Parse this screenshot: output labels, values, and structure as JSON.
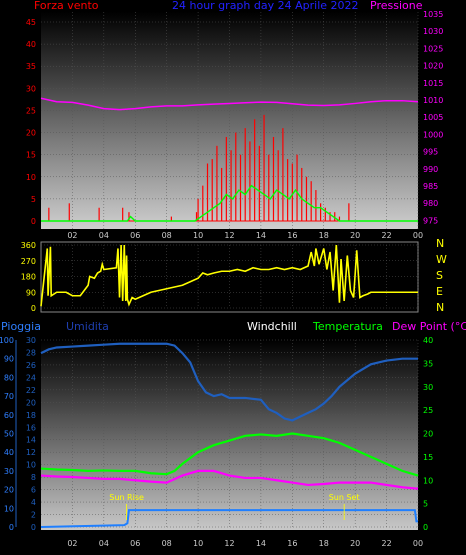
{
  "chart_data": [
    {
      "type": "line",
      "title": "24 hour graph day  24 Aprile 2022",
      "left_label": "Forza vento",
      "right_label": "Pressione",
      "x_ticks": [
        "02",
        "04",
        "06",
        "08",
        "10",
        "12",
        "14",
        "16",
        "18",
        "20",
        "22",
        "00"
      ],
      "y_left_ticks": [
        "0",
        "5",
        "10",
        "15",
        "20",
        "25",
        "30",
        "35",
        "40",
        "45"
      ],
      "y_left_range": [
        0,
        45
      ],
      "y_right_ticks": [
        "975",
        "980",
        "985",
        "990",
        "995",
        "1000",
        "1005",
        "1010",
        "1015",
        "1020",
        "1025",
        "1030",
        "1035"
      ],
      "y_right_range": [
        972.5,
        1035
      ],
      "series": [
        {
          "color": "#ff0000",
          "kind": "gust_bars",
          "x": [
            0.5,
            1.8,
            3.7,
            5.2,
            5.6,
            8.3,
            9.9,
            10.0,
            10.3,
            10.6,
            10.9,
            11.2,
            11.5,
            11.8,
            12.1,
            12.4,
            12.7,
            13.0,
            13.3,
            13.6,
            13.9,
            14.2,
            14.5,
            14.8,
            15.1,
            15.4,
            15.7,
            16.0,
            16.3,
            16.6,
            16.9,
            17.2,
            17.5,
            17.8,
            18.1,
            18.4,
            18.7,
            19.0,
            19.6
          ],
          "values": [
            3,
            4,
            3,
            3,
            2,
            1,
            2,
            5,
            8,
            13,
            14,
            17,
            12,
            19,
            16,
            20,
            15,
            21,
            18,
            23,
            17,
            24,
            15,
            19,
            16,
            21,
            14,
            13,
            15,
            12,
            10,
            9,
            7,
            4,
            3,
            2,
            2,
            1,
            4
          ]
        },
        {
          "color": "#00ff00",
          "kind": "wind",
          "x": [
            0,
            5.5,
            5.7,
            6,
            9,
            9.8,
            10.2,
            10.6,
            11,
            11.4,
            11.8,
            12.2,
            12.6,
            13,
            13.4,
            13.8,
            14.2,
            14.6,
            15,
            15.4,
            15.8,
            16.2,
            16.6,
            17,
            17.4,
            17.8,
            18.2,
            18.6,
            19,
            19.4,
            24
          ],
          "values": [
            0,
            0,
            1,
            0,
            0,
            0,
            1,
            2,
            3,
            4,
            6,
            5,
            7,
            6,
            8,
            7,
            6,
            5,
            7,
            6,
            5,
            7,
            5,
            4,
            3,
            3,
            2,
            1,
            0,
            0,
            0
          ]
        },
        {
          "color": "#ff00ff",
          "kind": "pressure",
          "x": [
            0,
            1,
            2,
            3,
            4,
            5,
            6,
            7,
            8,
            9,
            10,
            11,
            12,
            13,
            14,
            15,
            16,
            17,
            18,
            19,
            20,
            21,
            22,
            23,
            24
          ],
          "values": [
            1010.5,
            1009.5,
            1009.3,
            1008.5,
            1007.5,
            1007.2,
            1007.5,
            1008,
            1008.3,
            1008.3,
            1008.6,
            1008.8,
            1009,
            1009.2,
            1009.4,
            1009.3,
            1008.9,
            1008.5,
            1008.4,
            1008.6,
            1009,
            1009.5,
            1009.8,
            1009.8,
            1009.5
          ]
        }
      ]
    },
    {
      "type": "line",
      "title": "",
      "y_left_ticks": [
        "0",
        "90",
        "180",
        "270",
        "360"
      ],
      "y_left_range": [
        0,
        360
      ],
      "compass": [
        "N",
        "W",
        "S",
        "E",
        "N"
      ],
      "x_ticks": [
        "02",
        "04",
        "06",
        "08",
        "10",
        "12",
        "14",
        "16",
        "18",
        "20",
        "22",
        "00"
      ],
      "series": [
        {
          "color": "#ffff00",
          "kind": "direction",
          "x": [
            0,
            0.4,
            0.45,
            0.6,
            0.65,
            1,
            1.6,
            2,
            2.5,
            3,
            3.1,
            3.4,
            3.6,
            3.8,
            3.9,
            4.0,
            4.8,
            4.9,
            5,
            5.1,
            5.2,
            5.3,
            5.4,
            5.45,
            5.5,
            5.6,
            5.8,
            6,
            6.5,
            7,
            7.5,
            8,
            8.5,
            9,
            9.5,
            10,
            10.3,
            10.6,
            11,
            11.5,
            12,
            12.5,
            13,
            13.5,
            14,
            14.5,
            15,
            15.5,
            16,
            16.5,
            17,
            17.2,
            17.4,
            17.5,
            17.7,
            18,
            18.2,
            18.4,
            18.6,
            18.8,
            19,
            19.1,
            19.3,
            19.5,
            19.7,
            19.9,
            20.1,
            20.3,
            20.5,
            20.8,
            21,
            21.2,
            21.5,
            22,
            22.5,
            23,
            24
          ],
          "values": [
            10,
            340,
            70,
            350,
            70,
            90,
            90,
            70,
            70,
            130,
            180,
            170,
            200,
            210,
            250,
            220,
            230,
            340,
            60,
            360,
            40,
            360,
            40,
            300,
            50,
            20,
            60,
            50,
            70,
            90,
            100,
            110,
            120,
            130,
            150,
            170,
            200,
            190,
            200,
            210,
            210,
            220,
            210,
            230,
            220,
            220,
            230,
            220,
            230,
            220,
            240,
            320,
            240,
            340,
            250,
            340,
            220,
            320,
            100,
            360,
            30,
            280,
            40,
            300,
            100,
            60,
            330,
            60,
            70,
            80,
            90,
            90,
            90,
            90,
            90,
            90,
            90
          ]
        }
      ]
    },
    {
      "type": "line",
      "title": "",
      "labels": [
        "Pioggia",
        "Umidita",
        "Windchill",
        "Temperatura",
        "Dew Point (°C)"
      ],
      "y_rain_ticks": [
        "0",
        "10",
        "20",
        "30",
        "40",
        "50",
        "60",
        "70",
        "80",
        "90",
        "100"
      ],
      "y_hum_ticks": [
        "0",
        "2",
        "4",
        "6",
        "8",
        "10",
        "12",
        "14",
        "16",
        "18",
        "20",
        "22",
        "24",
        "26",
        "28",
        "30"
      ],
      "y_hum_range": [
        0,
        30
      ],
      "y_temp_ticks": [
        "0",
        "5",
        "10",
        "15",
        "20",
        "25",
        "30",
        "35",
        "40"
      ],
      "y_temp_range": [
        0,
        40
      ],
      "x_ticks": [
        "02",
        "04",
        "06",
        "08",
        "10",
        "12",
        "14",
        "16",
        "18",
        "20",
        "22",
        "00"
      ],
      "events": [
        {
          "label": "Sun Rise",
          "x": 5.45
        },
        {
          "label": "Sun Set",
          "x": 19.3
        }
      ],
      "series": [
        {
          "name": "Umidita",
          "color": "#1f5fbf",
          "axis": "rain",
          "x": [
            0,
            0.5,
            1,
            2,
            3,
            4,
            5,
            6,
            7,
            8,
            8.5,
            9,
            9.5,
            10,
            10.5,
            11,
            11.5,
            12,
            13,
            14,
            14.5,
            15,
            15.5,
            16,
            16.5,
            17,
            17.5,
            18,
            18.5,
            19,
            20,
            21,
            22,
            23,
            24
          ],
          "values": [
            93,
            95,
            96,
            96.5,
            97,
            97.5,
            98,
            98,
            98,
            98,
            97,
            93,
            88,
            78,
            72,
            70,
            71,
            69,
            69,
            68,
            63,
            61,
            58,
            57,
            59,
            61,
            63,
            66,
            70,
            75,
            82,
            87,
            89,
            90,
            90
          ]
        },
        {
          "name": "Temperatura",
          "color": "#00ff00",
          "axis": "temp",
          "x": [
            0,
            1,
            2,
            3,
            4,
            5,
            6,
            7,
            8,
            8.5,
            9,
            10,
            11,
            12,
            13,
            14,
            15,
            16,
            17,
            18,
            19,
            20,
            21,
            22,
            23,
            24
          ],
          "values": [
            12.5,
            12.3,
            12.2,
            12.0,
            12.1,
            12.0,
            12.0,
            11.5,
            11.3,
            12,
            13.5,
            16,
            17.5,
            18.5,
            19.5,
            19.8,
            19.5,
            20,
            19.5,
            19,
            18,
            16.5,
            15,
            13.5,
            12,
            11
          ]
        },
        {
          "name": "Dew Point (°C)",
          "color": "#ff00ff",
          "axis": "temp",
          "x": [
            0,
            1,
            2,
            3,
            4,
            5,
            6,
            7,
            8,
            9,
            10,
            11,
            12,
            13,
            14,
            15,
            16,
            17,
            18,
            19,
            20,
            21,
            22,
            23,
            24
          ],
          "values": [
            11,
            10.8,
            10.7,
            10.5,
            10.3,
            10.3,
            10,
            9.7,
            9.5,
            11,
            12,
            12,
            11,
            10.5,
            10.5,
            10,
            9.5,
            9,
            9.2,
            9.5,
            9.5,
            9.5,
            9,
            8.5,
            8.2
          ]
        },
        {
          "name": "Pioggia",
          "color": "#1f7fff",
          "axis": "rain",
          "x": [
            0,
            5.3,
            5.5,
            5.6,
            8,
            12,
            16,
            20,
            23.8,
            23.9,
            24
          ],
          "values": [
            0,
            1,
            2,
            9,
            9,
            9,
            9,
            9,
            9,
            3,
            3
          ]
        }
      ]
    }
  ]
}
